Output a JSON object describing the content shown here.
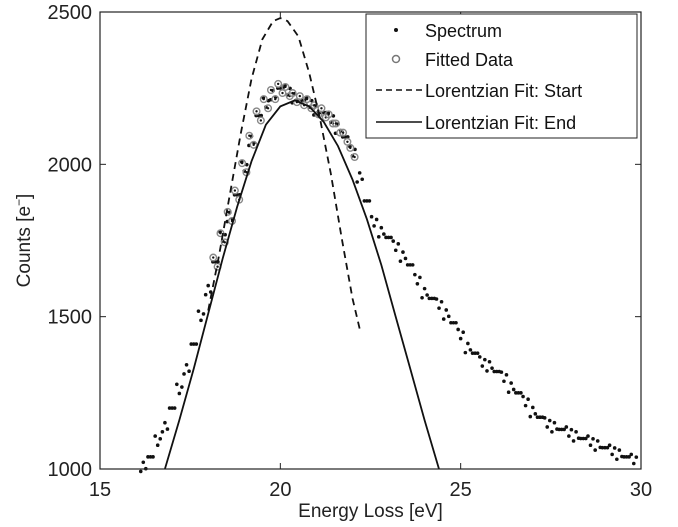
{
  "chart_data": {
    "type": "scatter",
    "title": "",
    "xlabel": "Energy Loss [eV]",
    "ylabel": "Counts [e",
    "ylabel_sup": "−",
    "ylabel_tail": "]",
    "xlim": [
      15,
      30
    ],
    "ylim": [
      1000,
      2500
    ],
    "xticks": [
      15,
      20,
      25,
      30
    ],
    "yticks": [
      1000,
      1500,
      2000,
      2500
    ],
    "grid": false,
    "legend_position": "top-right",
    "legend": [
      {
        "label": "Spectrum",
        "marker": "dot"
      },
      {
        "label": "Fitted Data",
        "marker": "circle"
      },
      {
        "label": "Lorentzian Fit: Start",
        "marker": "dashed-line"
      },
      {
        "label": "Lorentzian Fit: End",
        "marker": "solid-line"
      }
    ],
    "series": [
      {
        "name": "Spectrum",
        "kind": "scatter-dots",
        "x": [
          16.2,
          16.4,
          16.6,
          16.8,
          17.0,
          17.2,
          17.4,
          17.6,
          17.8,
          18.0,
          18.2,
          18.4,
          18.6,
          18.8,
          19.0,
          19.2,
          19.4,
          19.6,
          19.8,
          20.0,
          20.2,
          20.4,
          20.6,
          20.8,
          21.0,
          21.2,
          21.4,
          21.6,
          21.8,
          22.0,
          22.2,
          22.4,
          22.6,
          22.8,
          23.0,
          23.2,
          23.4,
          23.6,
          23.8,
          24.0,
          24.2,
          24.4,
          24.6,
          24.8,
          25.0,
          25.2,
          25.4,
          25.6,
          25.8,
          26.0,
          26.2,
          26.4,
          26.6,
          26.8,
          27.0,
          27.2,
          27.4,
          27.6,
          27.8,
          28.0,
          28.2,
          28.4,
          28.6,
          28.8,
          29.0,
          29.2,
          29.4,
          29.6,
          29.8
        ],
        "y": [
          1010,
          1040,
          1090,
          1140,
          1200,
          1260,
          1330,
          1410,
          1500,
          1590,
          1680,
          1760,
          1830,
          1900,
          1990,
          2080,
          2160,
          2200,
          2230,
          2250,
          2240,
          2220,
          2210,
          2200,
          2180,
          2170,
          2150,
          2120,
          2090,
          2040,
          1960,
          1880,
          1810,
          1780,
          1760,
          1730,
          1700,
          1670,
          1620,
          1580,
          1560,
          1540,
          1510,
          1480,
          1440,
          1400,
          1380,
          1350,
          1340,
          1320,
          1300,
          1270,
          1250,
          1220,
          1190,
          1170,
          1150,
          1140,
          1130,
          1120,
          1110,
          1100,
          1090,
          1080,
          1070,
          1060,
          1050,
          1040,
          1030
        ]
      },
      {
        "name": "Fitted Data",
        "kind": "scatter-circles",
        "x": [
          18.2,
          18.4,
          18.6,
          18.8,
          19.0,
          19.2,
          19.4,
          19.6,
          19.8,
          20.0,
          20.2,
          20.4,
          20.6,
          20.8,
          21.0,
          21.2,
          21.4,
          21.6,
          21.8,
          22.0
        ],
        "y": [
          1680,
          1760,
          1830,
          1900,
          1990,
          2080,
          2160,
          2200,
          2230,
          2250,
          2240,
          2220,
          2210,
          2200,
          2180,
          2170,
          2150,
          2120,
          2090,
          2040
        ]
      },
      {
        "name": "Lorentzian Fit: Start",
        "kind": "dashed-line",
        "x": [
          18.0,
          18.3,
          18.6,
          18.9,
          19.2,
          19.5,
          19.8,
          20.0,
          20.2,
          20.5,
          20.8,
          21.1,
          21.4,
          21.7,
          22.0,
          22.2
        ],
        "y": [
          1520,
          1700,
          1900,
          2100,
          2280,
          2410,
          2470,
          2480,
          2470,
          2420,
          2300,
          2150,
          1970,
          1760,
          1560,
          1460
        ]
      },
      {
        "name": "Lorentzian Fit: End",
        "kind": "solid-line",
        "x": [
          16.8,
          17.2,
          17.6,
          18.0,
          18.4,
          18.8,
          19.2,
          19.6,
          20.0,
          20.4,
          20.8,
          21.2,
          21.6,
          22.0,
          22.4,
          22.8,
          23.2,
          23.6,
          24.0,
          24.4
        ],
        "y": [
          1000,
          1160,
          1330,
          1510,
          1690,
          1860,
          2010,
          2130,
          2190,
          2210,
          2190,
          2140,
          2060,
          1950,
          1820,
          1670,
          1500,
          1330,
          1160,
          1000
        ]
      }
    ]
  }
}
